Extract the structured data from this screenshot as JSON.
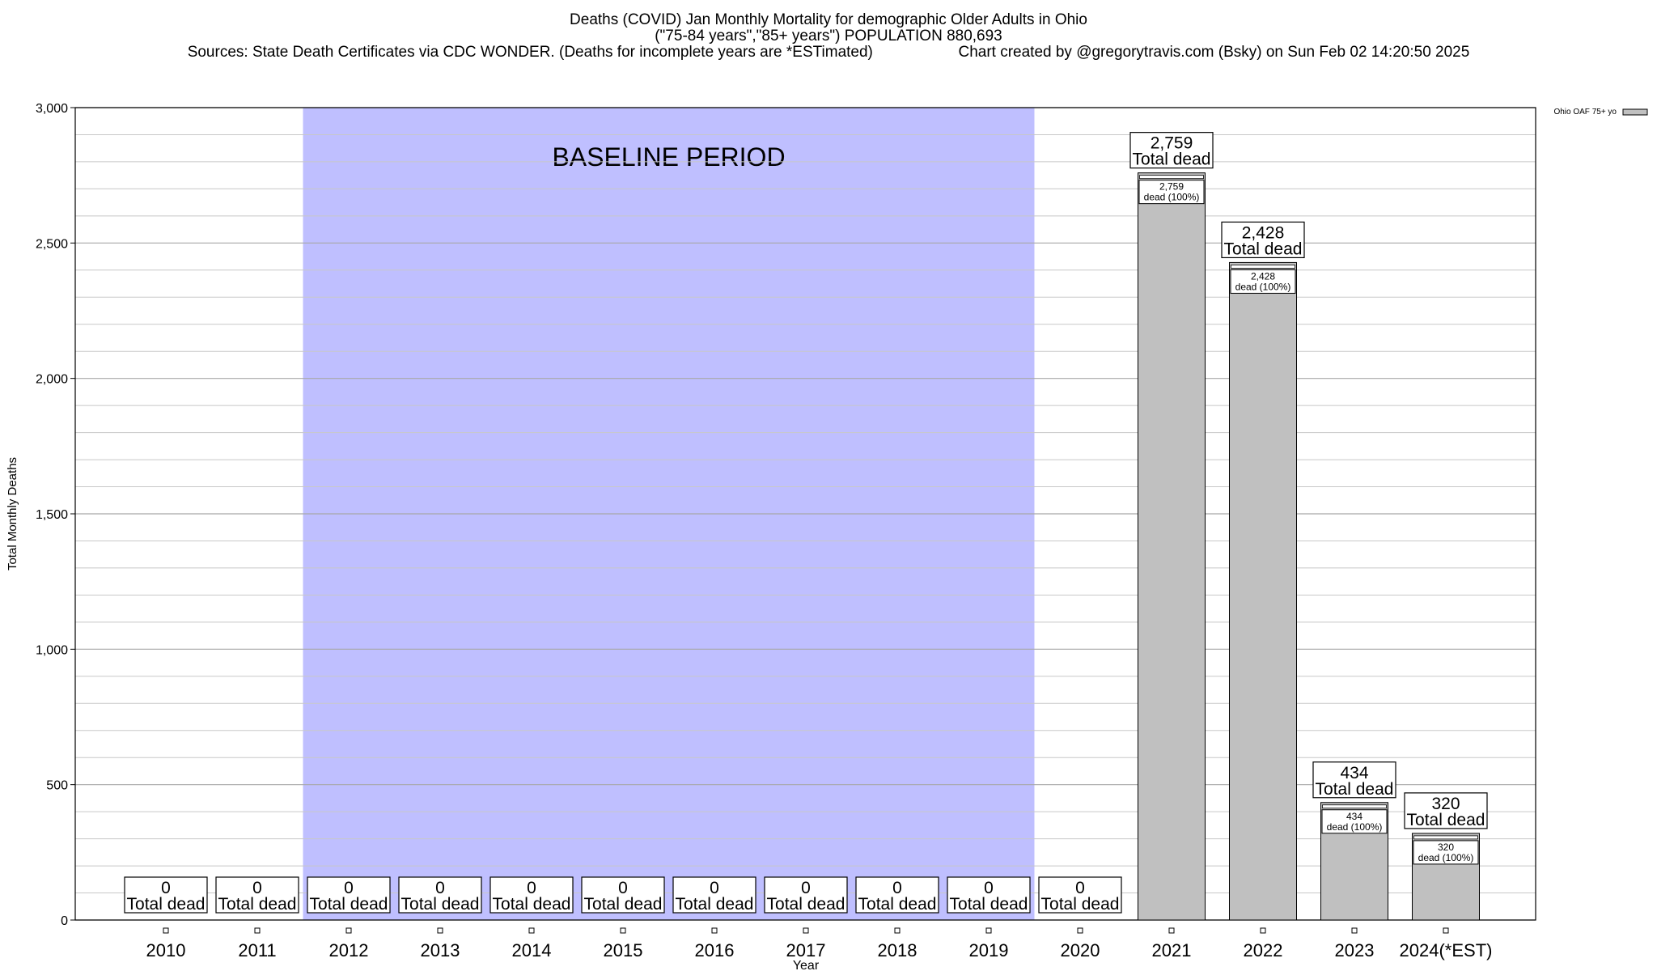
{
  "header": {
    "title_line1": "Deaths (COVID) Jan Monthly Mortality for demographic Older Adults in Ohio",
    "title_line2": "(\"75-84 years\",\"85+ years\") POPULATION 880,693",
    "sources": "Sources: State Death Certificates via CDC WONDER. (Deaths for incomplete years are *ESTimated)",
    "credit": "Chart created by @gregorytravis.com (Bsky) on Sun Feb 02 14:20:50 2025"
  },
  "chart_data": {
    "type": "bar",
    "xlabel": "Year",
    "ylabel": "Total Monthly Deaths",
    "ylim": [
      0,
      3000
    ],
    "yticks": [
      0,
      500,
      1000,
      1500,
      2000,
      2500,
      3000
    ],
    "ytick_labels": [
      "0",
      "500",
      "1,000",
      "1,500",
      "2,000",
      "2,500",
      "3,000"
    ],
    "grid": true,
    "legend": {
      "position": "top-right",
      "entries": [
        "Ohio OAF 75+ yo"
      ]
    },
    "categories": [
      "2010",
      "2011",
      "2012",
      "2013",
      "2014",
      "2015",
      "2016",
      "2017",
      "2018",
      "2019",
      "2020",
      "2021",
      "2022",
      "2023",
      "2024(*EST)"
    ],
    "series": [
      {
        "name": "Ohio OAF 75+ yo",
        "values": [
          0,
          0,
          0,
          0,
          0,
          0,
          0,
          0,
          0,
          0,
          0,
          2759,
          2428,
          434,
          320
        ],
        "color": "#c0c0c0"
      }
    ],
    "total_labels": [
      "0",
      "0",
      "0",
      "0",
      "0",
      "0",
      "0",
      "0",
      "0",
      "0",
      "0",
      "2,759",
      "2,428",
      "434",
      "320"
    ],
    "total_suffix": "Total dead",
    "inner_labels": [
      "2,759",
      "2,428",
      "434",
      "320"
    ],
    "inner_suffix": "dead (100%)",
    "shaded_region": {
      "label": "BASELINE PERIOD",
      "from": "2012",
      "to": "2019",
      "color": "#bfbfff"
    }
  }
}
